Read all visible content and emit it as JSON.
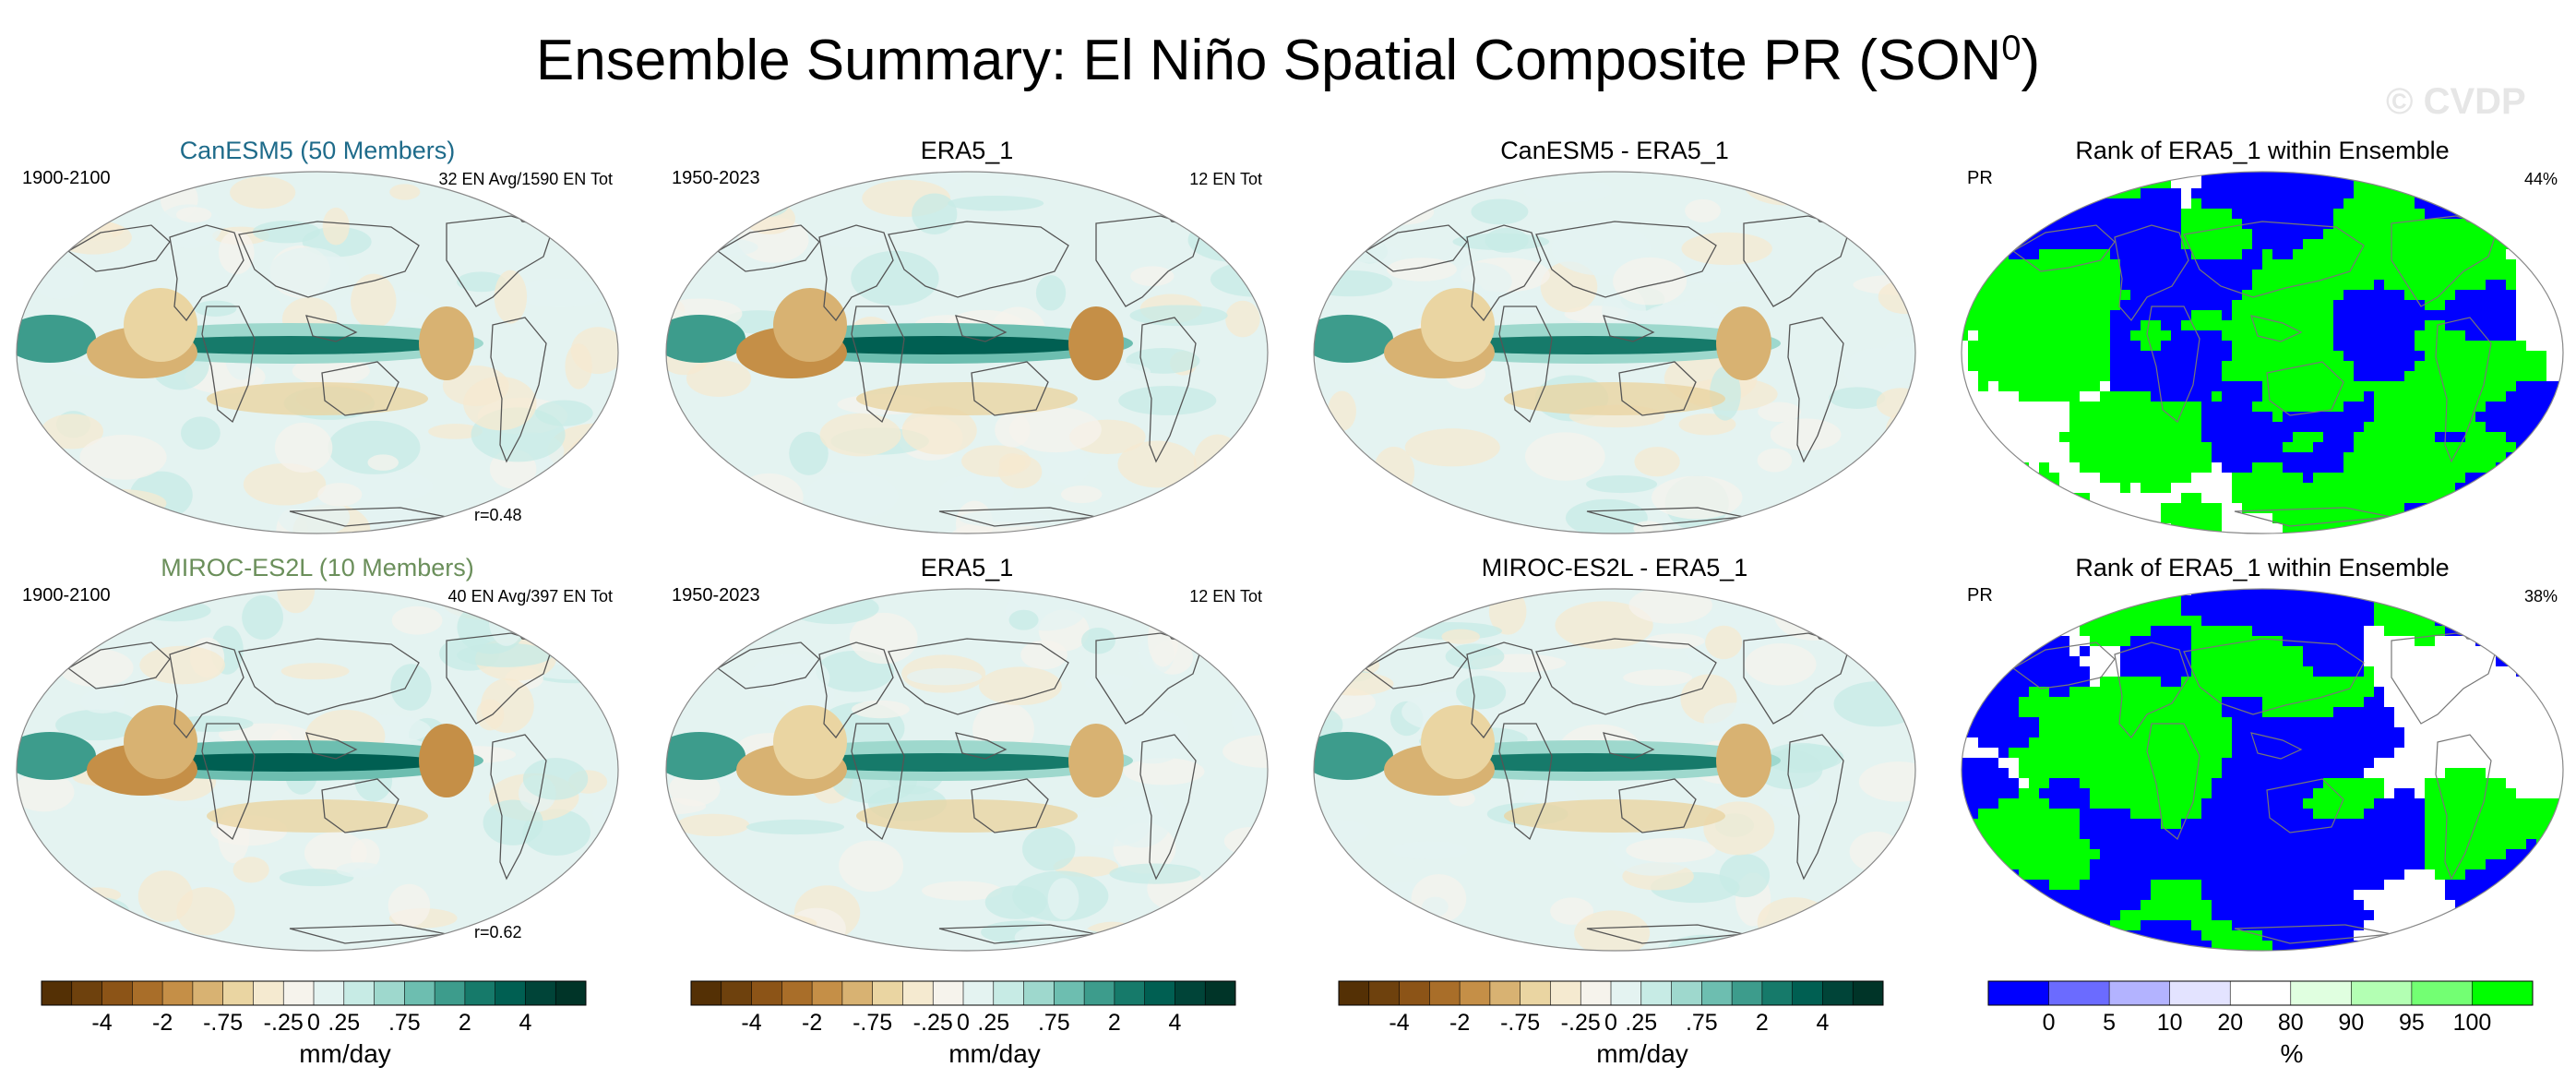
{
  "figure": {
    "title": "Ensemble Summary: El Niño Spatial Composite PR (SON",
    "title_sup": "0",
    "title_close": ")",
    "watermark": "© CVDP"
  },
  "colors": {
    "canesm5_title": "#1e6b8a",
    "miroc_title": "#6b8f5b",
    "rank_low": "#0000ff",
    "rank_high": "#00ff00",
    "ocean_pos": "#0e6e5e",
    "land_neg": "#a0651f"
  },
  "panels": [
    {
      "id": "canesm5",
      "title": "CanESM5 (50 Members)",
      "title_color": "#1e6b8a",
      "left": "1900-2100",
      "right": "32 EN Avg/1590 EN Tot",
      "corr": "r=0.48",
      "kind": "comp"
    },
    {
      "id": "era5-top",
      "title": "ERA5_1",
      "left": "1950-2023",
      "right": "12 EN Tot",
      "corr": "",
      "kind": "comp"
    },
    {
      "id": "diff-top",
      "title": "CanESM5 - ERA5_1",
      "left": "",
      "right": "",
      "corr": "",
      "kind": "comp"
    },
    {
      "id": "rank-top",
      "title": "Rank of ERA5_1 within Ensemble",
      "left": "PR",
      "right": "44%",
      "corr": "",
      "kind": "rank"
    },
    {
      "id": "miroc",
      "title": "MIROC-ES2L (10 Members)",
      "title_color": "#6b8f5b",
      "left": "1900-2100",
      "right": "40 EN Avg/397 EN Tot",
      "corr": "r=0.62",
      "kind": "comp"
    },
    {
      "id": "era5-bottom",
      "title": "ERA5_1",
      "left": "1950-2023",
      "right": "12 EN Tot",
      "corr": "",
      "kind": "comp"
    },
    {
      "id": "diff-bottom",
      "title": "MIROC-ES2L - ERA5_1",
      "left": "",
      "right": "",
      "corr": "",
      "kind": "comp"
    },
    {
      "id": "rank-bottom",
      "title": "Rank of ERA5_1 within Ensemble",
      "left": "PR",
      "right": "38%",
      "corr": "",
      "kind": "rank"
    }
  ],
  "colorbars": {
    "composite": {
      "unit": "mm/day",
      "ticks": [
        "-4",
        "-2",
        "-.75",
        "-.25",
        "0",
        ".25",
        ".75",
        "2",
        "4"
      ],
      "colors": [
        "#543005",
        "#6e410d",
        "#8c5417",
        "#a96e29",
        "#c58f47",
        "#d8b272",
        "#ead5a2",
        "#f5ead0",
        "#f6f3ec",
        "#e4f3f1",
        "#c7ebe5",
        "#9ed8cd",
        "#6dbeb0",
        "#3d9c8c",
        "#167a6a",
        "#005f52",
        "#004438",
        "#003428"
      ]
    },
    "rank": {
      "unit": "%",
      "ticks": [
        "0",
        "5",
        "10",
        "20",
        "80",
        "90",
        "95",
        "100"
      ],
      "colors": [
        "#0000ff",
        "#6b6bff",
        "#b3b3ff",
        "#e3e3ff",
        "#ffffff",
        "#e0ffe0",
        "#b3ffb3",
        "#73ff73",
        "#00ff00"
      ]
    }
  },
  "chart_data": [
    {
      "type": "heatmap",
      "title": "CanESM5 (50 Members)",
      "subtitle": "1900-2100",
      "annotation": [
        "32 EN Avg/1590 EN Tot",
        "r=0.48"
      ],
      "unit": "mm/day",
      "levels": [
        "-4",
        "-2",
        "-.75",
        "-.25",
        "0",
        ".25",
        ".75",
        "2",
        "4"
      ]
    },
    {
      "type": "heatmap",
      "title": "ERA5_1",
      "subtitle": "1950-2023",
      "annotation": [
        "12 EN Tot"
      ],
      "unit": "mm/day",
      "levels": [
        "-4",
        "-2",
        "-.75",
        "-.25",
        "0",
        ".25",
        ".75",
        "2",
        "4"
      ]
    },
    {
      "type": "heatmap",
      "title": "CanESM5 - ERA5_1",
      "unit": "mm/day",
      "levels": [
        "-4",
        "-2",
        "-.75",
        "-.25",
        "0",
        ".25",
        ".75",
        "2",
        "4"
      ]
    },
    {
      "type": "heatmap",
      "title": "Rank of ERA5_1 within Ensemble",
      "subtitle": "PR",
      "annotation": [
        "44%"
      ],
      "unit": "%",
      "levels": [
        "0",
        "5",
        "10",
        "20",
        "80",
        "90",
        "95",
        "100"
      ]
    },
    {
      "type": "heatmap",
      "title": "MIROC-ES2L (10 Members)",
      "subtitle": "1900-2100",
      "annotation": [
        "40 EN Avg/397 EN Tot",
        "r=0.62"
      ],
      "unit": "mm/day",
      "levels": [
        "-4",
        "-2",
        "-.75",
        "-.25",
        "0",
        ".25",
        ".75",
        "2",
        "4"
      ]
    },
    {
      "type": "heatmap",
      "title": "ERA5_1",
      "subtitle": "1950-2023",
      "annotation": [
        "12 EN Tot"
      ],
      "unit": "mm/day",
      "levels": [
        "-4",
        "-2",
        "-.75",
        "-.25",
        "0",
        ".25",
        ".75",
        "2",
        "4"
      ]
    },
    {
      "type": "heatmap",
      "title": "MIROC-ES2L - ERA5_1",
      "unit": "mm/day",
      "levels": [
        "-4",
        "-2",
        "-.75",
        "-.25",
        "0",
        ".25",
        ".75",
        "2",
        "4"
      ]
    },
    {
      "type": "heatmap",
      "title": "Rank of ERA5_1 within Ensemble",
      "subtitle": "PR",
      "annotation": [
        "38%"
      ],
      "unit": "%",
      "levels": [
        "0",
        "5",
        "10",
        "20",
        "80",
        "90",
        "95",
        "100"
      ]
    }
  ]
}
